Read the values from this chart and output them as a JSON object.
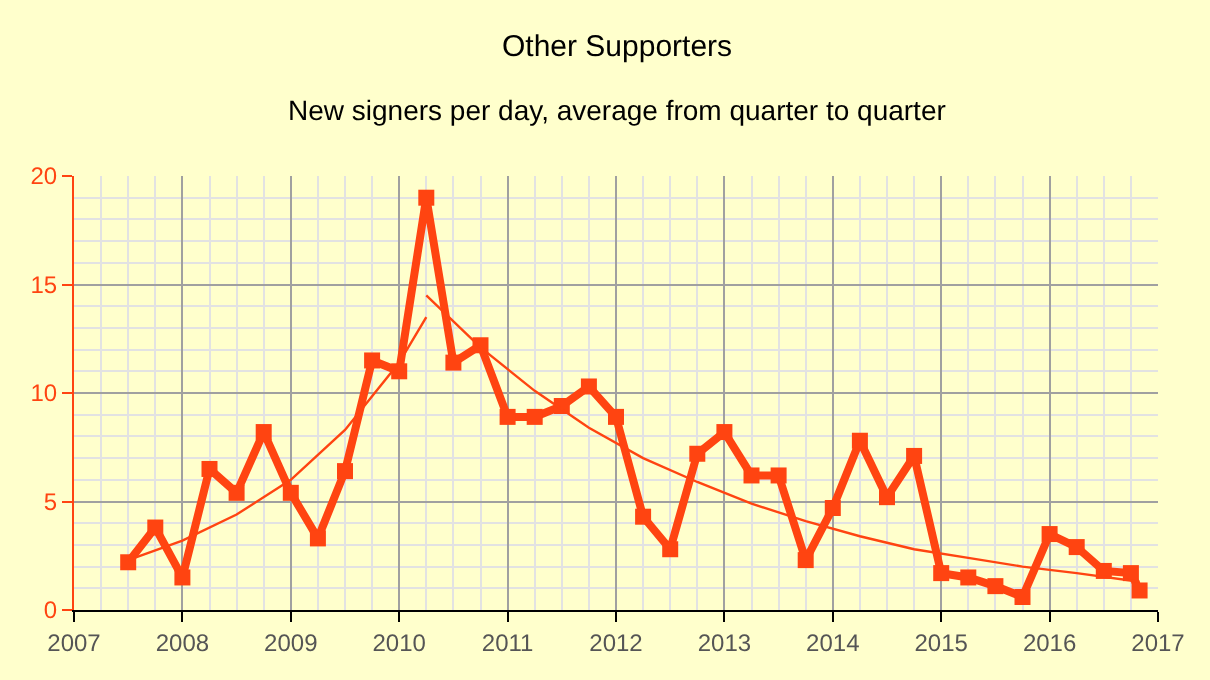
{
  "chart_data": {
    "type": "line",
    "title": "Other Supporters",
    "subtitle": "New signers per day, average from quarter to quarter",
    "series": [
      {
        "color": "#ff4411",
        "marker": "square",
        "x": [
          2007.5,
          2007.75,
          2008,
          2008.25,
          2008.5,
          2008.75,
          2009,
          2009.25,
          2009.5,
          2009.75,
          2010,
          2010.25,
          2010.5,
          2010.75,
          2011,
          2011.25,
          2011.5,
          2011.75,
          2012,
          2012.25,
          2012.5,
          2012.75,
          2013,
          2013.25,
          2013.5,
          2013.75,
          2014,
          2014.25,
          2014.5,
          2014.75,
          2015,
          2015.25,
          2015.5,
          2015.75,
          2016,
          2016.25,
          2016.5,
          2016.75,
          2016.83
        ],
        "values": [
          2.2,
          3.8,
          1.5,
          6.5,
          5.4,
          8.2,
          5.4,
          3.3,
          6.4,
          11.5,
          11.0,
          19.0,
          11.4,
          12.2,
          8.9,
          8.9,
          9.4,
          10.3,
          8.9,
          4.3,
          2.8,
          7.2,
          8.2,
          6.2,
          6.2,
          2.3,
          4.7,
          7.8,
          5.2,
          7.1,
          1.7,
          1.5,
          1.1,
          0.6,
          3.5,
          2.9,
          1.8,
          1.7,
          0.9
        ]
      },
      {
        "color": "#ff4411",
        "marker": "none",
        "x": [
          2007.5,
          2008,
          2008.5,
          2009,
          2009.5,
          2010,
          2010.25
        ],
        "values": [
          2.3,
          3.2,
          4.4,
          6.0,
          8.3,
          11.4,
          13.5
        ]
      },
      {
        "color": "#ff4411",
        "marker": "none",
        "x": [
          2010.25,
          2010.75,
          2011.25,
          2011.75,
          2012.25,
          2012.75,
          2013.25,
          2013.75,
          2014.25,
          2014.75,
          2015.25,
          2015.75,
          2016.25,
          2016.83
        ],
        "values": [
          14.5,
          12.1,
          10.1,
          8.4,
          7.0,
          5.9,
          4.9,
          4.1,
          3.4,
          2.8,
          2.4,
          2.0,
          1.7,
          1.3
        ]
      }
    ],
    "xlim": [
      2007,
      2017
    ],
    "xticks": [
      2007,
      2008,
      2009,
      2010,
      2011,
      2012,
      2013,
      2014,
      2015,
      2016,
      2017
    ],
    "ylim": [
      0,
      20
    ],
    "yticks": [
      0,
      5,
      10,
      15,
      20
    ],
    "grid": true
  }
}
